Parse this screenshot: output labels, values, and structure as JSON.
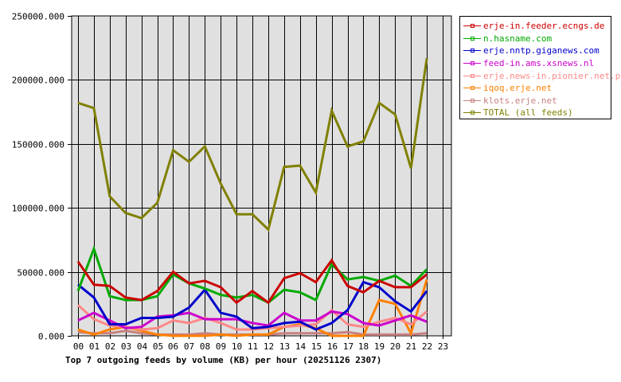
{
  "chart_data": {
    "type": "line",
    "title": "Top 7 outgoing feeds by volume (KB) per hour (20251126 2307)",
    "xlabel": "",
    "ylabel": "",
    "ylim": [
      0,
      250000
    ],
    "grid": true,
    "legend_position": "right",
    "y_ticks": [
      "0.000",
      "50000.000",
      "100000.000",
      "150000.000",
      "200000.000",
      "250000.000"
    ],
    "categories": [
      "00",
      "01",
      "02",
      "03",
      "04",
      "05",
      "06",
      "07",
      "08",
      "09",
      "10",
      "11",
      "12",
      "13",
      "14",
      "15",
      "16",
      "17",
      "18",
      "19",
      "20",
      "21",
      "22",
      "23"
    ],
    "series": [
      {
        "name": "erje-in.feeder.ecngs.de",
        "color": "#cc0000",
        "values": [
          58000,
          40000,
          39000,
          30000,
          28000,
          35000,
          50000,
          41000,
          43000,
          38000,
          26000,
          35000,
          26000,
          45000,
          49000,
          42000,
          59000,
          39000,
          34000,
          43000,
          38000,
          38000,
          48000
        ]
      },
      {
        "name": "n.hasname.com",
        "color": "#00aa00",
        "values": [
          35000,
          68000,
          31000,
          28000,
          28000,
          31000,
          48000,
          41000,
          37000,
          32000,
          30000,
          32000,
          26000,
          36000,
          34000,
          28000,
          56000,
          44000,
          46000,
          43000,
          47000,
          39000,
          52000
        ]
      },
      {
        "name": "erje.nntp.giganews.com",
        "color": "#0000cc",
        "values": [
          40000,
          30000,
          9000,
          9000,
          14000,
          14000,
          15000,
          22000,
          36000,
          18000,
          15000,
          6000,
          7000,
          10000,
          11000,
          5000,
          10000,
          20000,
          42000,
          38000,
          27000,
          19000,
          35000
        ]
      },
      {
        "name": "feed-in.ams.xsnews.nl",
        "color": "#cc00cc",
        "values": [
          12000,
          18000,
          12000,
          6000,
          7000,
          15000,
          16000,
          18000,
          13000,
          13000,
          13000,
          10000,
          8000,
          18000,
          12000,
          12000,
          19000,
          17000,
          10000,
          8000,
          12000,
          16000,
          11000
        ]
      },
      {
        "name": "erje.news-in.pionier.net.pl",
        "color": "#ff8888",
        "values": [
          24000,
          13000,
          8000,
          7000,
          5000,
          6000,
          12000,
          10000,
          14000,
          10000,
          5000,
          5000,
          6000,
          7000,
          8000,
          9000,
          20000,
          9000,
          7000,
          11000,
          14000,
          9000,
          19000
        ]
      },
      {
        "name": "iqoq.erje.net",
        "color": "#ff8000",
        "values": [
          5000,
          1000,
          5000,
          7000,
          4000,
          1000,
          0,
          0,
          0,
          1000,
          0,
          1000,
          1000,
          7000,
          9000,
          6000,
          0,
          0,
          0,
          28000,
          25000,
          2000,
          44000
        ]
      },
      {
        "name": "klots.erje.net",
        "color": "#c88080",
        "values": [
          3000,
          2000,
          2000,
          4000,
          2000,
          1000,
          1000,
          1000,
          2000,
          1000,
          1000,
          1000,
          1000,
          2000,
          2000,
          2000,
          2000,
          3000,
          1000,
          1000,
          1000,
          1000,
          2000
        ]
      },
      {
        "name": "TOTAL (all feeds)",
        "color": "#808000",
        "values": [
          182000,
          178000,
          109000,
          96000,
          92000,
          104000,
          145000,
          136000,
          148000,
          119000,
          95000,
          95000,
          83000,
          132000,
          133000,
          112000,
          176000,
          148000,
          152000,
          182000,
          173000,
          131000,
          217000
        ]
      }
    ]
  },
  "colors": {
    "plot_background": "#e0e0e0",
    "grid": "#000000"
  }
}
